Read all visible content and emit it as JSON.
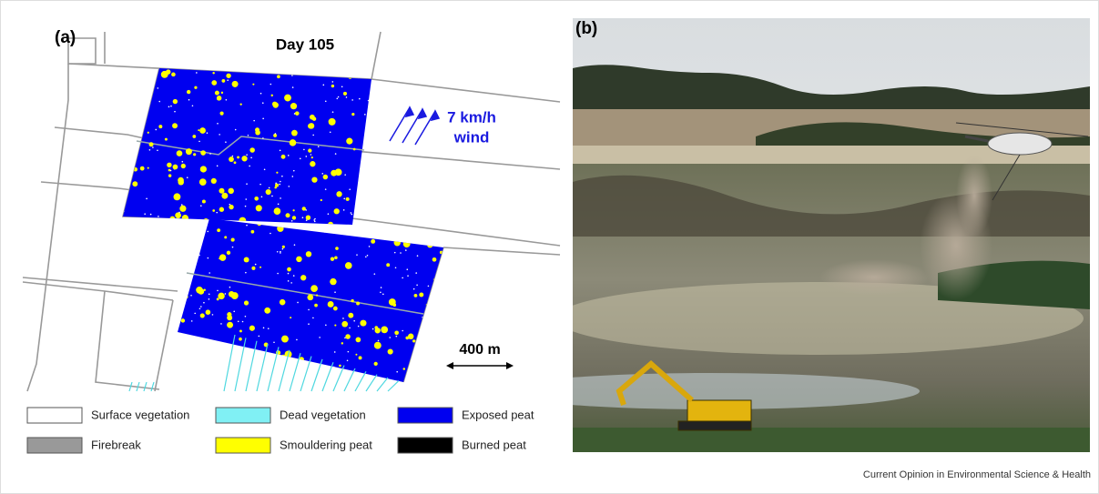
{
  "panel_a": {
    "label": "(a)",
    "title": "Day 105",
    "wind_speed": "7 km/h",
    "wind_word": "wind",
    "scale": "400 m",
    "legend": [
      "Surface vegetation",
      "Dead vegetation",
      "Exposed peat",
      "Firebreak",
      "Smouldering peat",
      "Burned peat"
    ]
  },
  "panel_b": {
    "label": "(b)"
  },
  "credit": "Current Opinion in Environmental Science & Health"
}
